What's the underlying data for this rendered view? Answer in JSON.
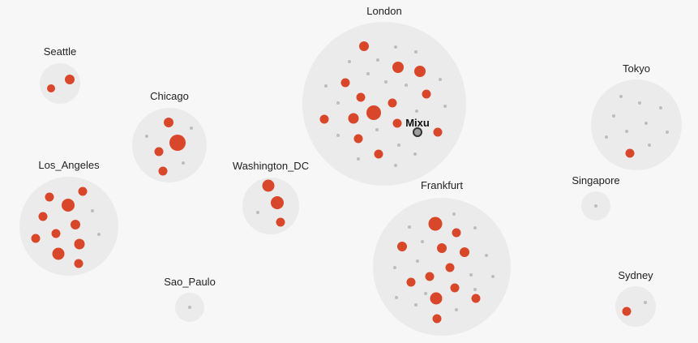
{
  "colors": {
    "background": "#f7f7f7",
    "cluster_fill": "#ebebeb",
    "active_node": "#d9472b",
    "idle_node": "#bdbdbd",
    "highlight_node_fill": "#9e9e9e",
    "highlight_node_stroke": "#333333"
  },
  "clusters": [
    {
      "id": "seattle",
      "label": "Seattle"
    },
    {
      "id": "chicago",
      "label": "Chicago"
    },
    {
      "id": "los-angeles",
      "label": "Los_Angeles"
    },
    {
      "id": "washington-dc",
      "label": "Washington_DC"
    },
    {
      "id": "sao-paulo",
      "label": "Sao_Paulo"
    },
    {
      "id": "london",
      "label": "London"
    },
    {
      "id": "frankfurt",
      "label": "Frankfurt"
    },
    {
      "id": "tokyo",
      "label": "Tokyo"
    },
    {
      "id": "singapore",
      "label": "Singapore"
    },
    {
      "id": "sydney",
      "label": "Sydney"
    }
  ],
  "highlight": {
    "cluster": "london",
    "label": "Mixu"
  }
}
